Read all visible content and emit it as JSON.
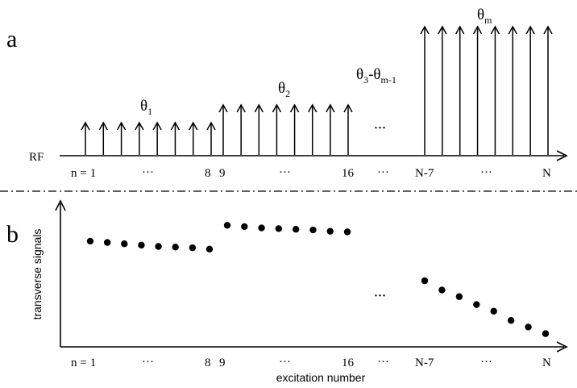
{
  "panels": {
    "a": "a",
    "b": "b"
  },
  "rf_label": "RF",
  "index_labels": {
    "n_prefix": "n =",
    "n1": "1",
    "n8": "8",
    "n9": "9",
    "n16": "16",
    "nN7": "N-7",
    "nN": "N",
    "ellipsis": "···"
  },
  "angles": {
    "g1_main": "θ",
    "g1_sub": "1",
    "g2_main": "θ",
    "g2_sub": "2",
    "g3_a": "θ",
    "g3_a_sub": "3",
    "g3_dash": "-θ",
    "g3_b_sub": "m-1",
    "gm_main": "θ",
    "gm_sub": "m"
  },
  "axis_titles": {
    "y": "transverse signals",
    "x": "excitation number"
  },
  "pulse_groups": [
    {
      "count": 8,
      "level": 1
    },
    {
      "count": 8,
      "level": 2
    },
    {
      "count": 8,
      "level": 3
    }
  ],
  "signal_series": [
    {
      "group": 1,
      "values": [
        0.8,
        0.79,
        0.78,
        0.77,
        0.76,
        0.755,
        0.75,
        0.74
      ]
    },
    {
      "group": 2,
      "values": [
        0.92,
        0.91,
        0.9,
        0.895,
        0.89,
        0.885,
        0.875,
        0.87
      ]
    },
    {
      "group": 3,
      "values": [
        0.5,
        0.43,
        0.38,
        0.32,
        0.27,
        0.2,
        0.15,
        0.1
      ]
    }
  ]
}
